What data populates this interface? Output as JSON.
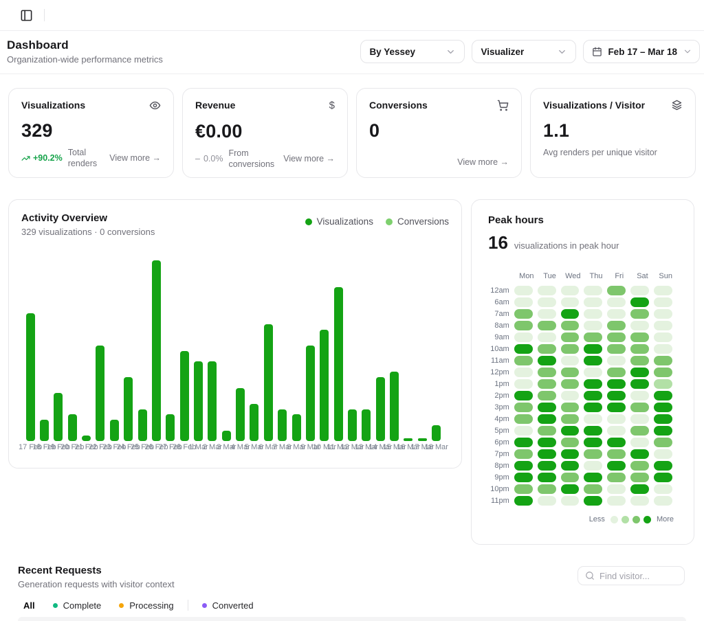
{
  "topbar": {
    "sidebar_toggle": "panel-left"
  },
  "header": {
    "title": "Dashboard",
    "subtitle": "Organization-wide performance metrics",
    "org_select": "By Yessey",
    "type_select": "Visualizer",
    "date_range": "Feb 17 – Mar 18"
  },
  "stat_cards": [
    {
      "title": "Visualizations",
      "icon": "eye-icon",
      "value": "329",
      "trend": "+90.2%",
      "caption": "Total renders",
      "link": "View more →"
    },
    {
      "title": "Revenue",
      "icon": "dollar-icon",
      "value": "€0.00",
      "trend": "0.0%",
      "caption": "From conversions",
      "link": "View more →"
    },
    {
      "title": "Conversions",
      "icon": "cart-icon",
      "value": "0",
      "link": "View more →"
    },
    {
      "title": "Visualizations / Visitor",
      "icon": "layers-icon",
      "value": "1.1",
      "caption": "Avg renders per unique visitor"
    }
  ],
  "activity": {
    "title": "Activity Overview",
    "subtitle": "329 visualizations · 0 conversions",
    "legend": [
      {
        "label": "Visualizations",
        "color": "#14a314"
      },
      {
        "label": "Conversions",
        "color": "#7ed06e"
      }
    ]
  },
  "chart_data": {
    "type": "bar",
    "title": "Activity Overview",
    "categories": [
      "17 Feb",
      "18 Feb",
      "19 Feb",
      "20 Feb",
      "21 Feb",
      "22 Feb",
      "23 Feb",
      "24 Feb",
      "25 Feb",
      "26 Feb",
      "27 Feb",
      "28 Feb",
      "1 Mar",
      "2 Mar",
      "3 Mar",
      "4 Mar",
      "5 Mar",
      "6 Mar",
      "7 Mar",
      "8 Mar",
      "9 Mar",
      "10 Mar",
      "11 Mar",
      "12 Mar",
      "13 Mar",
      "14 Mar",
      "15 Mar",
      "16 Mar",
      "17 Mar",
      "18 Mar"
    ],
    "values": [
      24,
      4,
      9,
      5,
      1,
      18,
      4,
      12,
      6,
      34,
      5,
      17,
      15,
      15,
      2,
      10,
      7,
      22,
      6,
      5,
      18,
      21,
      29,
      6,
      6,
      12,
      13,
      0,
      0,
      3
    ],
    "series_name": "Visualizations",
    "total": 329,
    "xlabel": "",
    "ylabel": "",
    "ylim": [
      0,
      34
    ],
    "bar_color": "#14a314",
    "grid": false,
    "legend_position": "top-right"
  },
  "peak_hours": {
    "title": "Peak hours",
    "value": "16",
    "caption": "visualizations in peak hour",
    "days": [
      "Mon",
      "Tue",
      "Wed",
      "Thu",
      "Fri",
      "Sat",
      "Sun"
    ],
    "hours": [
      "12am",
      "6am",
      "7am",
      "8am",
      "9am",
      "10am",
      "11am",
      "12pm",
      "1pm",
      "2pm",
      "3pm",
      "4pm",
      "5pm",
      "6pm",
      "7pm",
      "8pm",
      "9pm",
      "10pm",
      "11pm"
    ],
    "levels": [
      [
        0,
        0,
        0,
        0,
        2,
        0,
        0
      ],
      [
        0,
        0,
        0,
        0,
        0,
        3,
        0
      ],
      [
        2,
        0,
        3,
        0,
        0,
        2,
        0
      ],
      [
        2,
        2,
        2,
        0,
        2,
        0,
        0
      ],
      [
        0,
        0,
        2,
        2,
        2,
        2,
        0
      ],
      [
        3,
        2,
        2,
        3,
        2,
        2,
        0
      ],
      [
        2,
        3,
        0,
        3,
        0,
        2,
        2
      ],
      [
        0,
        2,
        2,
        0,
        2,
        3,
        2
      ],
      [
        0,
        2,
        2,
        3,
        3,
        3,
        1
      ],
      [
        3,
        2,
        0,
        3,
        3,
        0,
        3
      ],
      [
        2,
        3,
        2,
        3,
        3,
        2,
        3
      ],
      [
        2,
        3,
        2,
        0,
        0,
        0,
        3
      ],
      [
        0,
        2,
        3,
        3,
        0,
        2,
        3
      ],
      [
        3,
        3,
        2,
        3,
        3,
        0,
        2
      ],
      [
        2,
        3,
        3,
        2,
        2,
        3,
        0
      ],
      [
        3,
        3,
        3,
        0,
        3,
        2,
        3
      ],
      [
        3,
        3,
        2,
        3,
        2,
        2,
        3
      ],
      [
        2,
        2,
        3,
        2,
        0,
        3,
        0
      ],
      [
        3,
        0,
        0,
        3,
        0,
        0,
        0
      ]
    ],
    "palette": [
      "#e4f2df",
      "#b2e0a6",
      "#7ec66c",
      "#14a314"
    ],
    "legend_less": "Less",
    "legend_more": "More"
  },
  "recent": {
    "title": "Recent Requests",
    "subtitle": "Generation requests with visitor context",
    "search_placeholder": "Find visitor...",
    "filters": [
      {
        "label": "All",
        "dot": null,
        "active": true
      },
      {
        "label": "Complete",
        "dot": "#10b981",
        "active": false
      },
      {
        "label": "Processing",
        "dot": "#f5a50b",
        "active": false
      },
      {
        "label": "Converted",
        "dot": "#8b5cf6",
        "active": false
      }
    ]
  }
}
